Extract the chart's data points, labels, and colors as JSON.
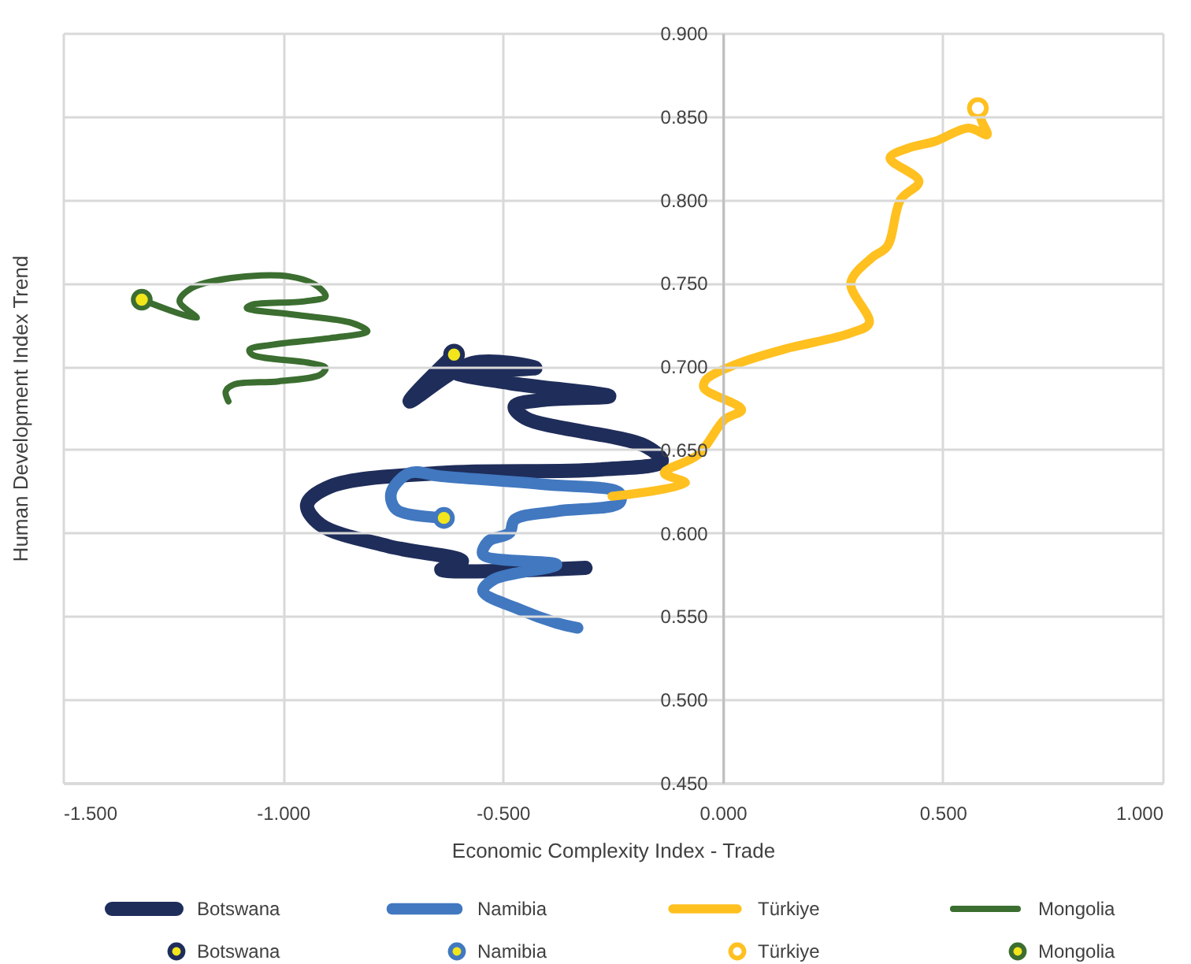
{
  "chart_data": {
    "type": "line",
    "xlabel": "Economic Complexity Index - Trade",
    "ylabel": "Human Development Index Trend",
    "xlim": [
      -1.5,
      1.0
    ],
    "xticks": [
      {
        "value": -1.5,
        "label": "-1.500"
      },
      {
        "value": -1.0,
        "label": "-1.000"
      },
      {
        "value": -0.5,
        "label": "-0.500"
      },
      {
        "value": 0,
        "label": "0.000"
      },
      {
        "value": 0.5,
        "label": "0.500"
      },
      {
        "value": 1.0,
        "label": "1.000"
      }
    ],
    "ylim": [
      0.45,
      0.9
    ],
    "yticks": [
      {
        "value": 0.45,
        "label": "0.450"
      },
      {
        "value": 0.5,
        "label": "0.500"
      },
      {
        "value": 0.55,
        "label": "0.550"
      },
      {
        "value": 0.6,
        "label": "0.600"
      },
      {
        "value": 0.65,
        "label": "0.650"
      },
      {
        "value": 0.7,
        "label": "0.700"
      },
      {
        "value": 0.75,
        "label": "0.750"
      },
      {
        "value": 0.8,
        "label": "0.800"
      },
      {
        "value": 0.85,
        "label": "0.850"
      },
      {
        "value": 0.9,
        "label": "0.900"
      }
    ],
    "grid": true,
    "legend": "bottom",
    "series": [
      {
        "name": "Botswana",
        "color": "#1f2d5a",
        "x": [
          -0.312,
          -0.64,
          -0.593,
          -0.76,
          -0.915,
          -0.945,
          -0.891,
          -0.64,
          -0.282,
          -0.139,
          -0.175,
          -0.449,
          -0.473,
          -0.402,
          -0.258,
          -0.485,
          -0.605,
          -0.426,
          -0.569,
          -0.712,
          -0.611
        ],
        "values": [
          0.579,
          0.578,
          0.583,
          0.592,
          0.605,
          0.617,
          0.628,
          0.636,
          0.638,
          0.643,
          0.652,
          0.669,
          0.676,
          0.68,
          0.682,
          0.69,
          0.696,
          0.699,
          0.702,
          0.679,
          0.707
        ]
      },
      {
        "name": "Namibia",
        "color": "#4178c0",
        "x": [
          -0.33,
          -0.378,
          -0.461,
          -0.545,
          -0.521,
          -0.378,
          -0.545,
          -0.533,
          -0.485,
          -0.473,
          -0.378,
          -0.235,
          -0.235,
          -0.402,
          -0.64,
          -0.712,
          -0.754,
          -0.742,
          -0.634
        ],
        "values": [
          0.543,
          0.546,
          0.554,
          0.565,
          0.572,
          0.581,
          0.587,
          0.595,
          0.6,
          0.608,
          0.613,
          0.618,
          0.624,
          0.629,
          0.634,
          0.636,
          0.624,
          0.614,
          0.609
        ]
      },
      {
        "name": "Türkiye",
        "color": "#ffc020",
        "x": [
          -0.252,
          -0.085,
          -0.133,
          -0.056,
          0.004,
          0.043,
          -0.043,
          -0.038,
          0.028,
          0.136,
          0.291,
          0.333,
          0.291,
          0.338,
          0.374,
          0.404,
          0.446,
          0.38,
          0.422,
          0.482,
          0.559,
          0.601,
          0.589,
          0.58
        ],
        "values": [
          0.622,
          0.63,
          0.636,
          0.647,
          0.668,
          0.674,
          0.687,
          0.692,
          0.701,
          0.71,
          0.72,
          0.726,
          0.75,
          0.765,
          0.772,
          0.8,
          0.811,
          0.825,
          0.831,
          0.835,
          0.843,
          0.839,
          0.847,
          0.855
        ]
      },
      {
        "name": "Mongolia",
        "color": "#3b6e30",
        "x": [
          -1.124,
          -1.13,
          -1.112,
          -1.01,
          -0.915,
          -0.903,
          -0.939,
          -1.07,
          -1.076,
          -1.023,
          -0.891,
          -0.808,
          -0.843,
          -0.975,
          -1.082,
          -1.07,
          -0.951,
          -0.903,
          -0.927,
          -0.987,
          -1.118,
          -1.207,
          -1.235,
          -1.196,
          -1.321
        ],
        "values": [
          0.679,
          0.685,
          0.689,
          0.691,
          0.695,
          0.699,
          0.702,
          0.707,
          0.71,
          0.713,
          0.717,
          0.721,
          0.726,
          0.731,
          0.735,
          0.737,
          0.739,
          0.742,
          0.749,
          0.754,
          0.753,
          0.747,
          0.739,
          0.729,
          0.74
        ]
      },
      {
        "name": "Botswana",
        "type": "scatter",
        "color": "#1f2d5a",
        "colors": [
          "#f2e51c"
        ],
        "x": [
          -0.611
        ],
        "values": [
          0.707
        ]
      },
      {
        "name": "Namibia",
        "type": "scatter",
        "color": "#4178c0",
        "colors": [
          "#f2e51c"
        ],
        "x": [
          -0.634
        ],
        "values": [
          0.609
        ]
      },
      {
        "name": "Türkiye",
        "type": "scatter",
        "color": "#ffc020",
        "colors": [
          "#ffffff"
        ],
        "x": [
          0.58
        ],
        "values": [
          0.855
        ]
      },
      {
        "name": "Mongolia",
        "type": "scatter",
        "color": "#3b6e30",
        "colors": [
          "#f2e51c"
        ],
        "x": [
          -1.321
        ],
        "values": [
          0.74
        ]
      }
    ]
  }
}
